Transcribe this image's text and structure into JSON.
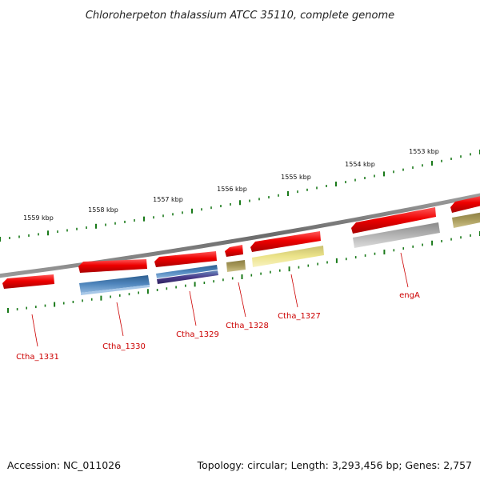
{
  "title": "Chloroherpeton thalassium ATCC 35110, complete genome",
  "footer": {
    "accession": "Accession: NC_011026",
    "summary": "Topology: circular; Length: 3,293,456 bp; Genes: 2,757"
  },
  "colors": {
    "backbone": "#7a7a7a",
    "tick": "#1a7a1a",
    "gene_label": "#cc0000",
    "red": "#e00000",
    "steel_blue": "#4a7fb5",
    "dark_blue": "#4a3a8a",
    "olive": "#a89a5a",
    "light_yellow": "#ece48a",
    "gray": "#b0b0b0"
  },
  "kbp_labels": [
    "1559 kbp",
    "1558 kbp",
    "1557 kbp",
    "1556 kbp",
    "1555 kbp",
    "1554 kbp",
    "1553 kbp"
  ],
  "gene_labels": [
    "Ctha_1331",
    "Ctha_1330",
    "Ctha_1329",
    "Ctha_1328",
    "Ctha_1327",
    "engA"
  ]
}
